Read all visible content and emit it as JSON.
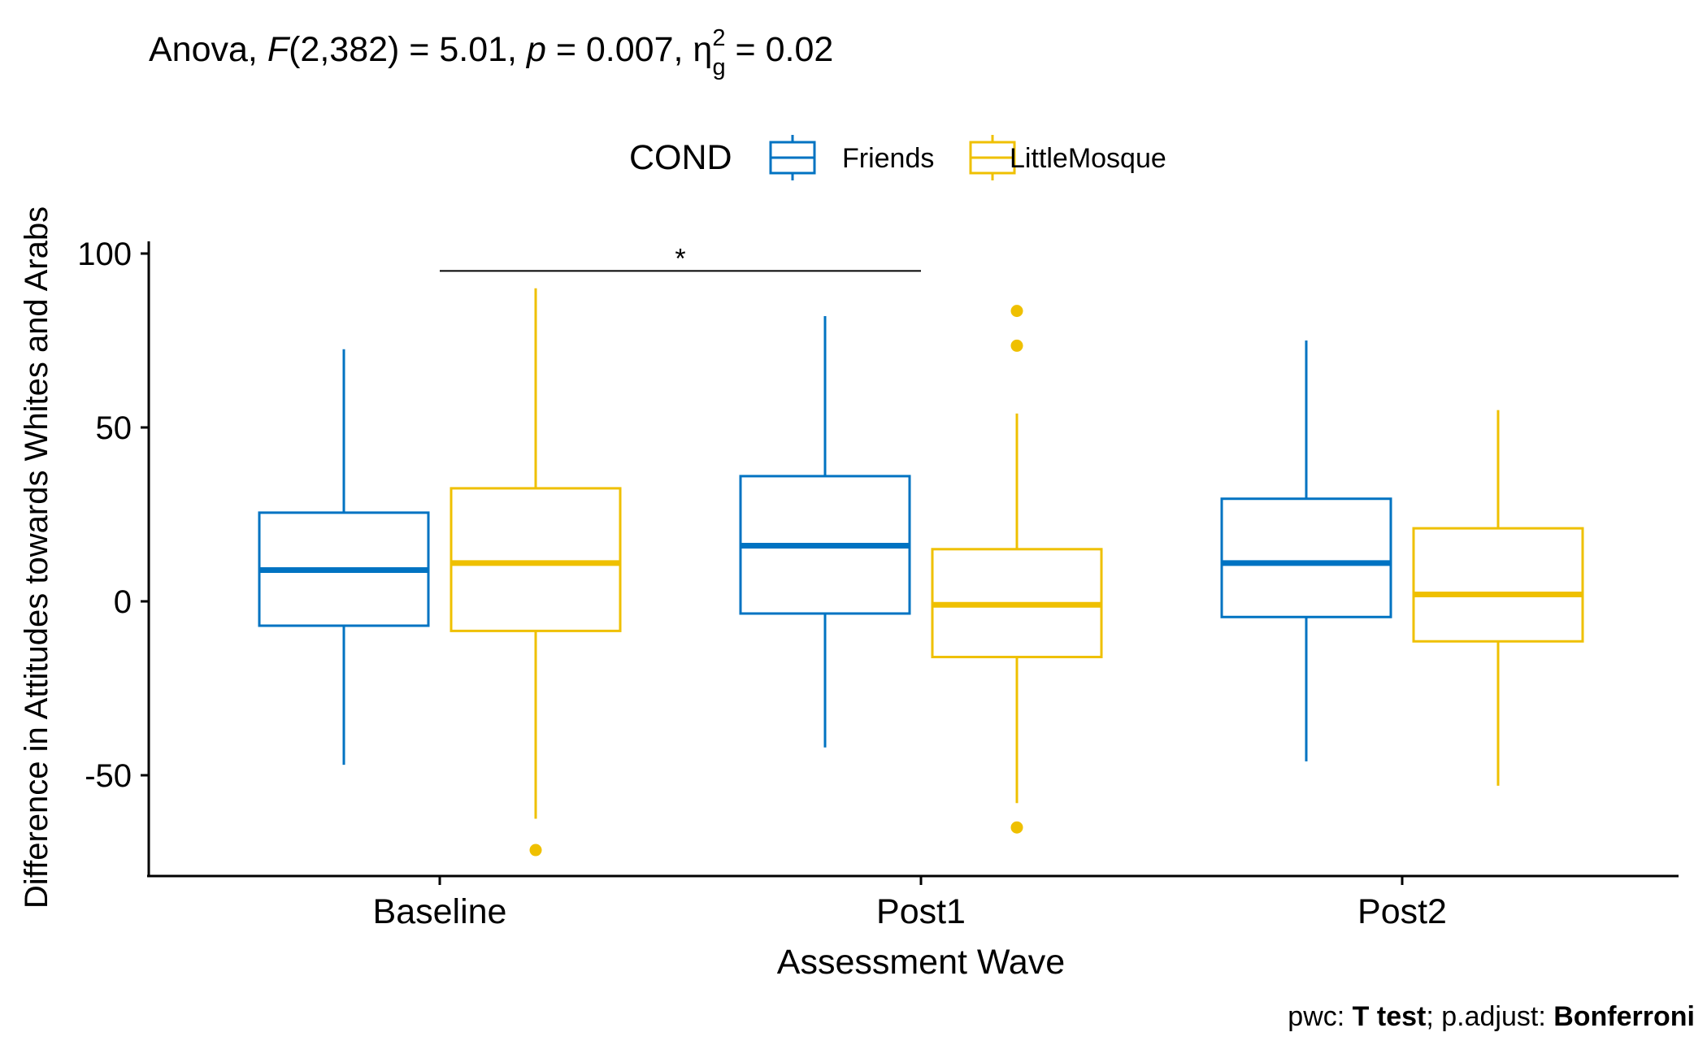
{
  "subtitle": {
    "prefix": "Anova, ",
    "f_symbol": "F",
    "f_part": "(2,382) = 5.01, ",
    "p_symbol": "p",
    "p_part": " = 0.007, ",
    "eta_symbol": "η",
    "eta_sup": "2",
    "eta_sub": "g",
    "eta_part": " = 0.02"
  },
  "caption": {
    "pwc_label": "pwc: ",
    "pwc_value": "T test",
    "sep": "; p.adjust: ",
    "adjust_value": "Bonferroni"
  },
  "legend": {
    "title": "COND",
    "placement": "top",
    "items": [
      "Friends",
      "LittleMosque"
    ]
  },
  "colors": {
    "Friends": "#0073C2",
    "LittleMosque": "#EFC000"
  },
  "chart_data": {
    "type": "boxplot",
    "xlabel": "Assessment Wave",
    "ylabel": "Difference in Attitudes towards Whites and Arabs",
    "categories": [
      "Baseline",
      "Post1",
      "Post2"
    ],
    "ylim": [
      -80,
      103
    ],
    "yticks": [
      -50,
      0,
      50,
      100
    ],
    "grid": false,
    "series": [
      {
        "name": "Friends",
        "boxes": [
          {
            "category": "Baseline",
            "whisker_low": -47,
            "q1": -7,
            "median": 9,
            "q3": 25.5,
            "whisker_high": 72.5,
            "outliers": []
          },
          {
            "category": "Post1",
            "whisker_low": -42,
            "q1": -3.5,
            "median": 16,
            "q3": 36,
            "whisker_high": 82,
            "outliers": []
          },
          {
            "category": "Post2",
            "whisker_low": -46,
            "q1": -4.5,
            "median": 11,
            "q3": 29.5,
            "whisker_high": 75,
            "outliers": []
          }
        ]
      },
      {
        "name": "LittleMosque",
        "boxes": [
          {
            "category": "Baseline",
            "whisker_low": -62.5,
            "q1": -8.5,
            "median": 11,
            "q3": 32.5,
            "whisker_high": 90,
            "outliers": [
              -71.5
            ]
          },
          {
            "category": "Post1",
            "whisker_low": -58,
            "q1": -16,
            "median": -1,
            "q3": 15,
            "whisker_high": 54,
            "outliers": [
              83.5,
              73.5,
              -65
            ]
          },
          {
            "category": "Post2",
            "whisker_low": -53,
            "q1": -11.5,
            "median": 2,
            "q3": 21,
            "whisker_high": 55,
            "outliers": []
          }
        ]
      }
    ],
    "annotations": [
      {
        "type": "significance_bracket",
        "from": "Baseline",
        "to": "Post1",
        "y": 95,
        "label": "*"
      }
    ]
  }
}
